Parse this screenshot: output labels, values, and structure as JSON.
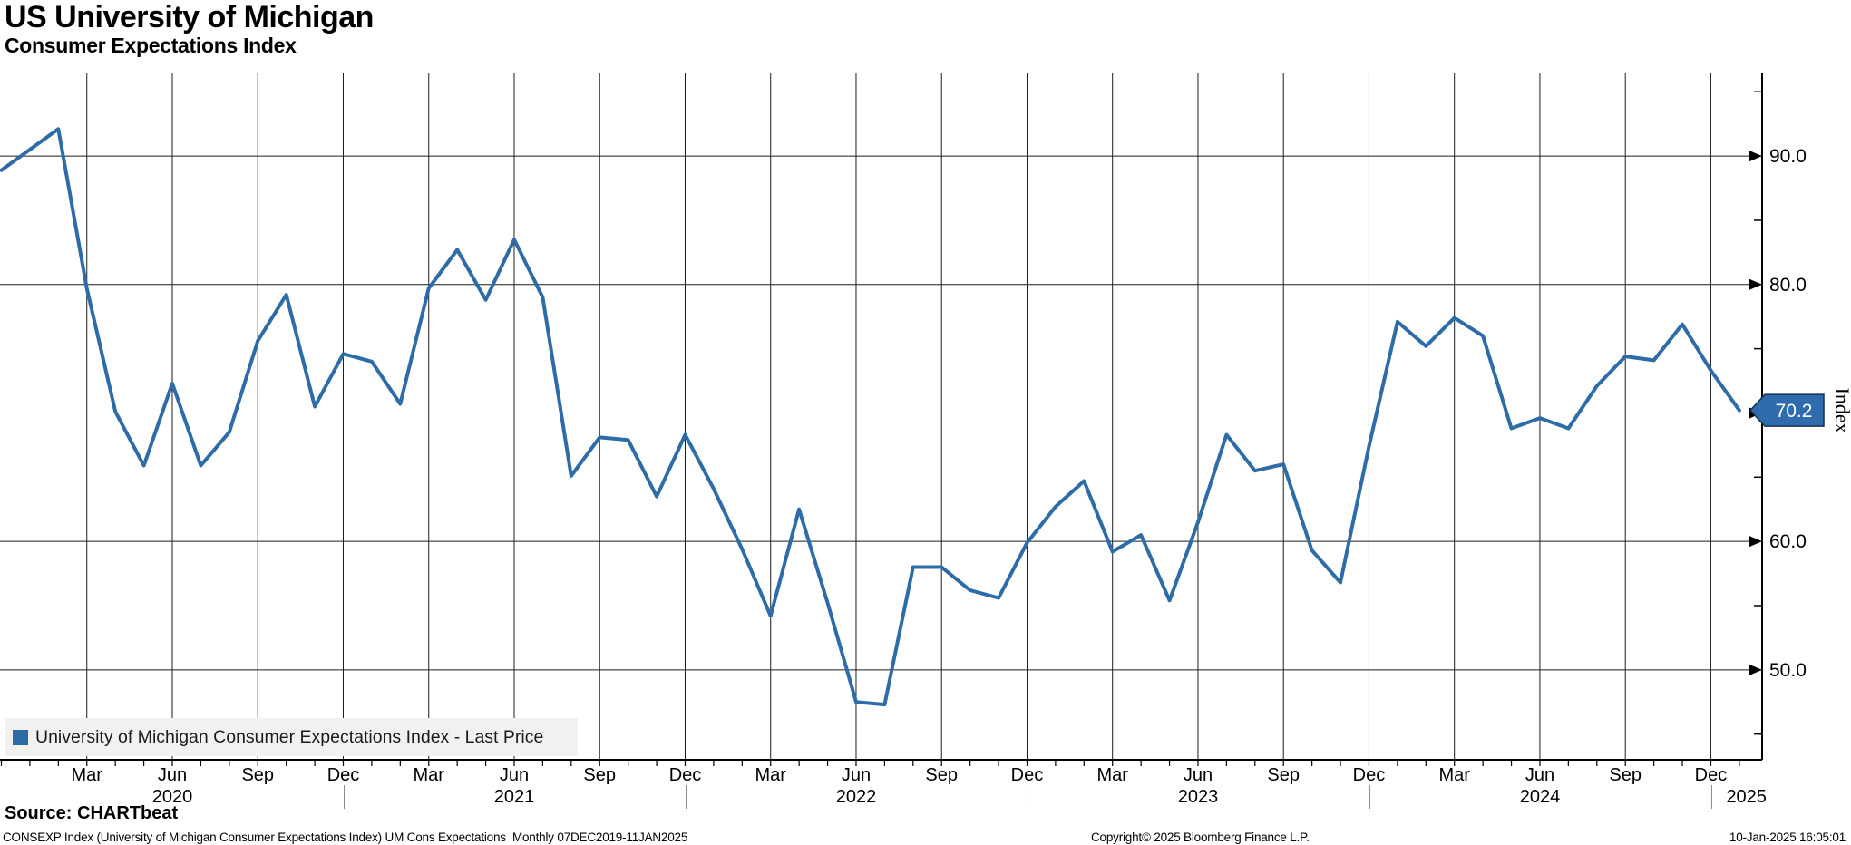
{
  "header": {
    "title": "US University of Michigan",
    "subtitle": "Consumer Expectations Index"
  },
  "colors": {
    "line": "#2e6ca8",
    "badge_fill": "#2f6cad",
    "badge_border": "#16314f",
    "badge_text": "#ffffff",
    "grid": "#1c1c1c",
    "axis": "#000000",
    "year_divider": "#8a8a8a",
    "legend_bg": "#f1f1ef"
  },
  "legend": {
    "label": "University of Michigan Consumer Expectations Index - Last Price"
  },
  "right_axis": {
    "title": "Index",
    "last_price_label": "70.2"
  },
  "footer": {
    "source": "Source: CHARTbeat",
    "description": "CONSEXP Index (University of Michigan Consumer Expectations Index) UM Cons Expectations  Monthly 07DEC2019-11JAN2025",
    "copyright": "Copyright© 2025 Bloomberg Finance L.P.",
    "datetime": "10-Jan-2025 16:05:01"
  },
  "chart_data": {
    "type": "line",
    "title": "US University of Michigan Consumer Expectations Index",
    "series_name": "University of Michigan Consumer Expectations Index - Last Price",
    "frequency": "Monthly",
    "period": "07DEC2019-11JAN2025",
    "ylabel": "Index",
    "grid": true,
    "legend_position": "bottom-left",
    "ylim": [
      43,
      96.5
    ],
    "xlim_months": [
      0,
      61.8
    ],
    "y_major_ticks": [
      50,
      60,
      70,
      80,
      90
    ],
    "y_tick_labels": [
      "50.0",
      "60.0",
      "70.0",
      "80.0",
      "90.0"
    ],
    "y_minor_tick_step": 5,
    "x_quarter_labels": [
      "Mar",
      "Jun",
      "Sep",
      "Dec"
    ],
    "year_labels": [
      "2020",
      "2021",
      "2022",
      "2023",
      "2024",
      "2025"
    ],
    "last_value": 70.2,
    "x": [
      "Dec 2019",
      "Jan 2020",
      "Feb 2020",
      "Mar 2020",
      "Apr 2020",
      "May 2020",
      "Jun 2020",
      "Jul 2020",
      "Aug 2020",
      "Sep 2020",
      "Oct 2020",
      "Nov 2020",
      "Dec 2020",
      "Jan 2021",
      "Feb 2021",
      "Mar 2021",
      "Apr 2021",
      "May 2021",
      "Jun 2021",
      "Jul 2021",
      "Aug 2021",
      "Sep 2021",
      "Oct 2021",
      "Nov 2021",
      "Dec 2021",
      "Jan 2022",
      "Feb 2022",
      "Mar 2022",
      "Apr 2022",
      "May 2022",
      "Jun 2022",
      "Jul 2022",
      "Aug 2022",
      "Sep 2022",
      "Oct 2022",
      "Nov 2022",
      "Dec 2022",
      "Jan 2023",
      "Feb 2023",
      "Mar 2023",
      "Apr 2023",
      "May 2023",
      "Jun 2023",
      "Jul 2023",
      "Aug 2023",
      "Sep 2023",
      "Oct 2023",
      "Nov 2023",
      "Dec 2023",
      "Jan 2024",
      "Feb 2024",
      "Mar 2024",
      "Apr 2024",
      "May 2024",
      "Jun 2024",
      "Jul 2024",
      "Aug 2024",
      "Sep 2024",
      "Oct 2024",
      "Nov 2024",
      "Dec 2024",
      "Jan 2025"
    ],
    "values": [
      88.9,
      90.5,
      92.1,
      79.7,
      70.1,
      65.9,
      72.3,
      65.9,
      68.5,
      75.6,
      79.2,
      70.5,
      74.6,
      74.0,
      70.7,
      79.7,
      82.7,
      78.8,
      83.5,
      79.0,
      65.1,
      68.1,
      67.9,
      63.5,
      68.3,
      64.1,
      59.4,
      54.2,
      62.5,
      55.2,
      47.5,
      47.3,
      58.0,
      58.0,
      56.2,
      55.6,
      59.9,
      62.7,
      64.7,
      59.2,
      60.5,
      55.4,
      61.5,
      68.3,
      65.5,
      66.0,
      59.3,
      56.8,
      67.4,
      77.1,
      75.2,
      77.4,
      76.0,
      68.8,
      69.6,
      68.8,
      72.1,
      74.4,
      74.1,
      76.9,
      73.3,
      70.2
    ]
  }
}
